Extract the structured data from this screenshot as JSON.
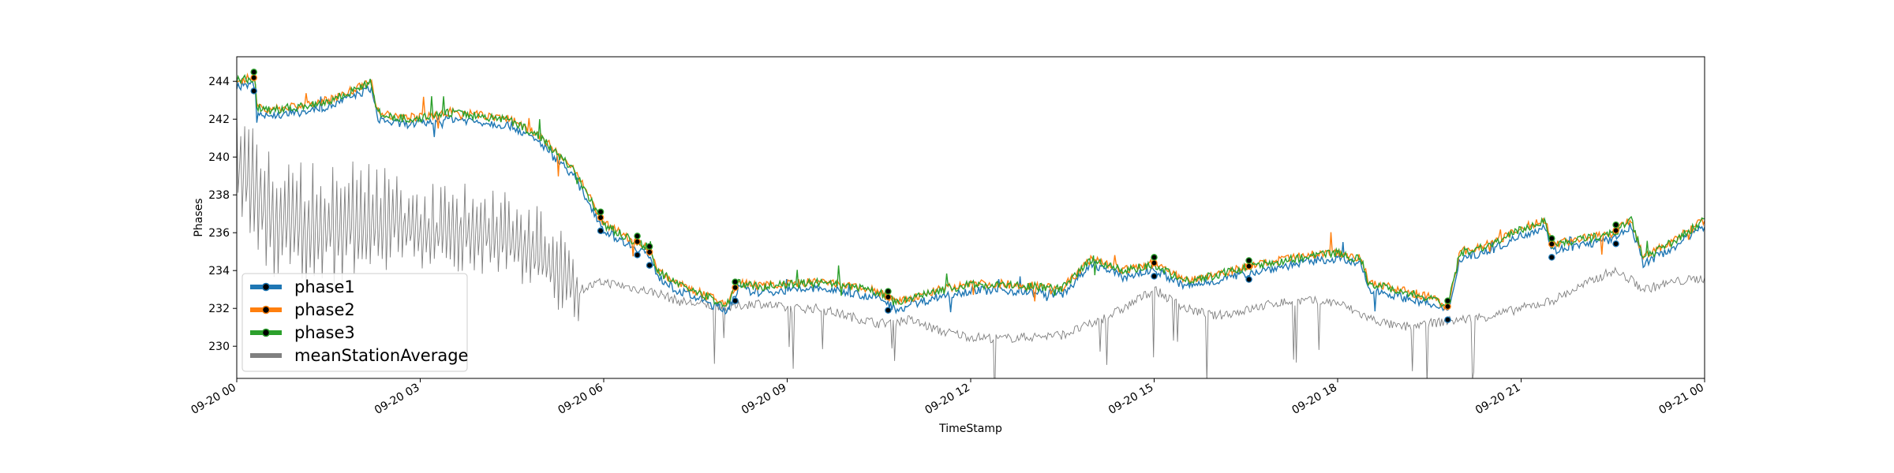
{
  "chart_data": {
    "type": "line",
    "xlabel": "TimeStamp",
    "ylabel": "Phases",
    "xlim": [
      0,
      24
    ],
    "ylim": [
      228.3,
      245.3
    ],
    "x_ticks": [
      {
        "h": 0,
        "label": "09-20 00"
      },
      {
        "h": 3,
        "label": "09-20 03"
      },
      {
        "h": 6,
        "label": "09-20 06"
      },
      {
        "h": 9,
        "label": "09-20 09"
      },
      {
        "h": 12,
        "label": "09-20 12"
      },
      {
        "h": 15,
        "label": "09-20 15"
      },
      {
        "h": 18,
        "label": "09-20 18"
      },
      {
        "h": 21,
        "label": "09-20 21"
      },
      {
        "h": 24,
        "label": "09-21 00"
      }
    ],
    "y_ticks": [
      230,
      232,
      234,
      236,
      238,
      240,
      242,
      244
    ],
    "legend": "lower-left",
    "grid": false,
    "base_profile": {
      "x": [
        0,
        0.3,
        0.33,
        0.5,
        1.0,
        1.5,
        2.0,
        2.2,
        2.3,
        2.6,
        3.0,
        3.5,
        4.0,
        4.5,
        5.0,
        5.5,
        5.8,
        6.0,
        6.2,
        6.5,
        6.7,
        6.9,
        7.2,
        7.6,
        8.0,
        8.2,
        8.5,
        9.0,
        9.5,
        10.0,
        10.5,
        10.8,
        11.0,
        11.5,
        12.0,
        12.5,
        13.0,
        13.5,
        14.0,
        14.5,
        15.0,
        15.5,
        16.0,
        16.5,
        17.0,
        17.5,
        18.0,
        18.4,
        18.5,
        19.0,
        19.5,
        19.8,
        20.0,
        20.5,
        21.0,
        21.4,
        21.5,
        22.0,
        22.5,
        22.8,
        23.0,
        23.5,
        24.0
      ],
      "y": [
        243.9,
        244.0,
        242.5,
        242.3,
        242.5,
        242.8,
        243.5,
        243.8,
        242.2,
        241.9,
        241.9,
        242.2,
        242.0,
        241.8,
        240.8,
        239.2,
        237.5,
        236.3,
        235.9,
        235.4,
        235.1,
        233.8,
        233.1,
        232.6,
        232.0,
        233.2,
        233.0,
        233.1,
        233.2,
        233.0,
        232.7,
        232.1,
        232.3,
        232.8,
        233.1,
        233.1,
        233.0,
        232.9,
        234.5,
        233.8,
        234.2,
        233.3,
        233.6,
        234.0,
        234.3,
        234.6,
        234.8,
        234.4,
        233.2,
        232.8,
        232.4,
        231.9,
        234.8,
        235.2,
        236.0,
        236.5,
        235.2,
        235.5,
        235.8,
        236.5,
        234.5,
        235.4,
        236.5
      ]
    },
    "series": [
      {
        "name": "phase1",
        "color": "#1f77b4",
        "offset": -0.15,
        "markers": true
      },
      {
        "name": "phase2",
        "color": "#ff7f0e",
        "offset": 0.2,
        "markers": true
      },
      {
        "name": "phase3",
        "color": "#2ca02c",
        "offset": 0.15,
        "markers": true
      },
      {
        "name": "meanStationAverage",
        "color": "#808080",
        "markers": false,
        "x": [
          0,
          0.2,
          0.4,
          0.6,
          1.0,
          1.5,
          2.0,
          2.3,
          2.5,
          3.0,
          3.5,
          4.0,
          4.5,
          5.0,
          5.3,
          5.6,
          6.0,
          6.3,
          6.6,
          6.9,
          7.2,
          7.6,
          8.0,
          8.5,
          9.0,
          9.5,
          10.0,
          10.5,
          11.0,
          11.5,
          12.0,
          12.5,
          13.0,
          13.5,
          14.0,
          14.5,
          15.0,
          15.5,
          16.0,
          16.5,
          17.0,
          17.5,
          18.0,
          18.5,
          19.0,
          19.5,
          20.0,
          20.5,
          21.0,
          21.5,
          22.0,
          22.5,
          22.8,
          23.0,
          23.5,
          24.0
        ],
        "y": [
          239.5,
          238.5,
          237.5,
          236.5,
          236.3,
          236.0,
          236.0,
          236.3,
          236.5,
          236.0,
          236.0,
          235.9,
          235.4,
          234.5,
          233.8,
          233.0,
          233.4,
          233.2,
          233.0,
          232.8,
          232.4,
          232.2,
          232.0,
          232.3,
          232.0,
          232.0,
          231.6,
          231.2,
          231.4,
          230.8,
          230.5,
          230.4,
          230.5,
          230.6,
          231.2,
          232.0,
          233.0,
          232.0,
          231.6,
          231.9,
          232.3,
          232.4,
          232.3,
          231.5,
          231.0,
          231.2,
          231.4,
          231.6,
          232.0,
          232.4,
          233.2,
          234.0,
          233.5,
          233.0,
          233.4,
          233.6
        ]
      }
    ],
    "marker_times": [
      0.28,
      5.95,
      6.55,
      6.75,
      8.15,
      10.65,
      15.0,
      16.55,
      19.8,
      21.5,
      22.55
    ]
  }
}
